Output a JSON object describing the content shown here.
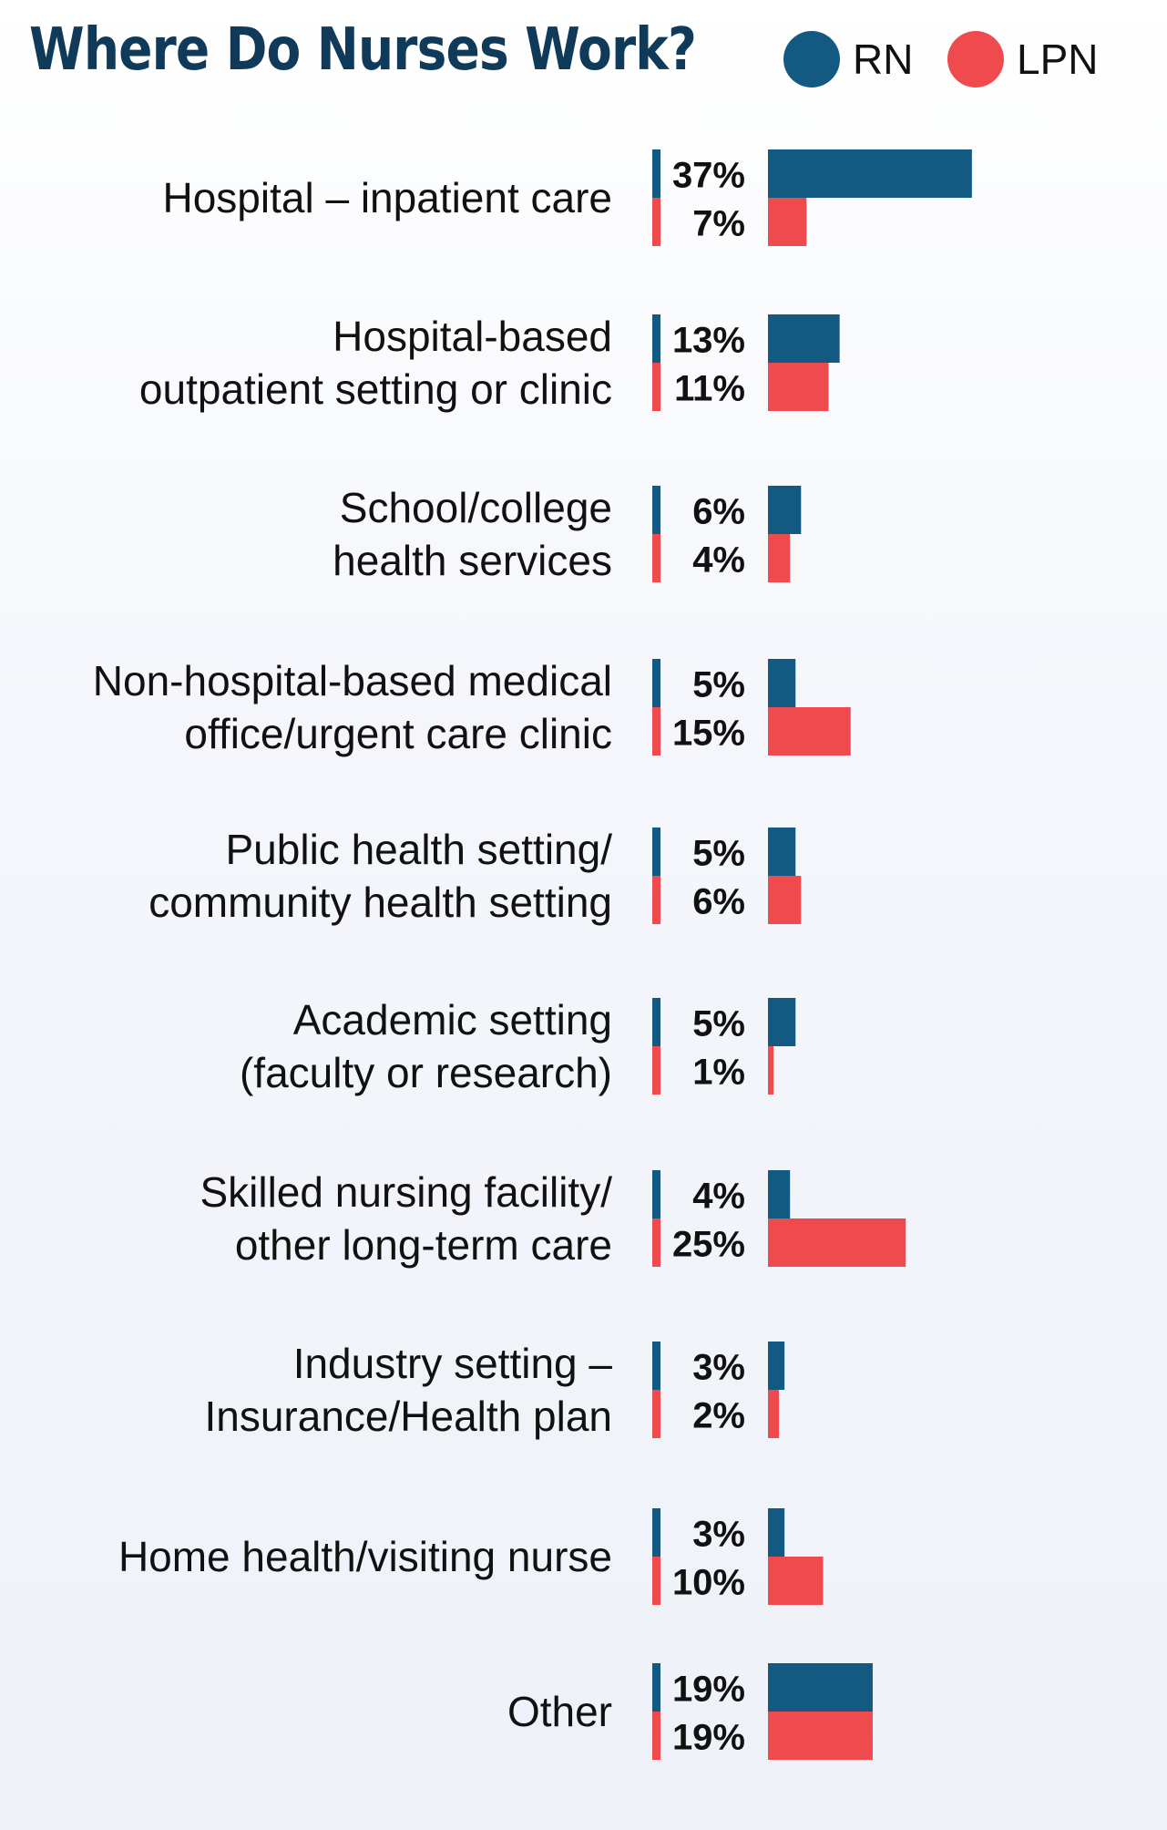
{
  "chart_data": {
    "type": "bar",
    "title": "Where Do Nurses Work?",
    "categories": [
      "Hospital – inpatient care",
      "Hospital-based\noutpatient setting or clinic",
      "School/college\nhealth services",
      "Non-hospital-based medical\noffice/urgent care clinic",
      "Public health setting/\ncommunity health setting",
      "Academic setting\n(faculty or research)",
      "Skilled nursing facility/\nother long-term care",
      "Industry setting –\nInsurance/Health plan",
      "Home health/visiting nurse",
      "Other"
    ],
    "series": [
      {
        "name": "RN",
        "color": "#135a83",
        "values": [
          37,
          13,
          6,
          5,
          5,
          5,
          4,
          3,
          3,
          19
        ]
      },
      {
        "name": "LPN",
        "color": "#ef4b4f",
        "values": [
          7,
          11,
          4,
          15,
          6,
          1,
          25,
          2,
          10,
          19
        ]
      }
    ],
    "value_suffix": "%",
    "orientation": "horizontal",
    "legend": "top-right",
    "grid": false
  }
}
